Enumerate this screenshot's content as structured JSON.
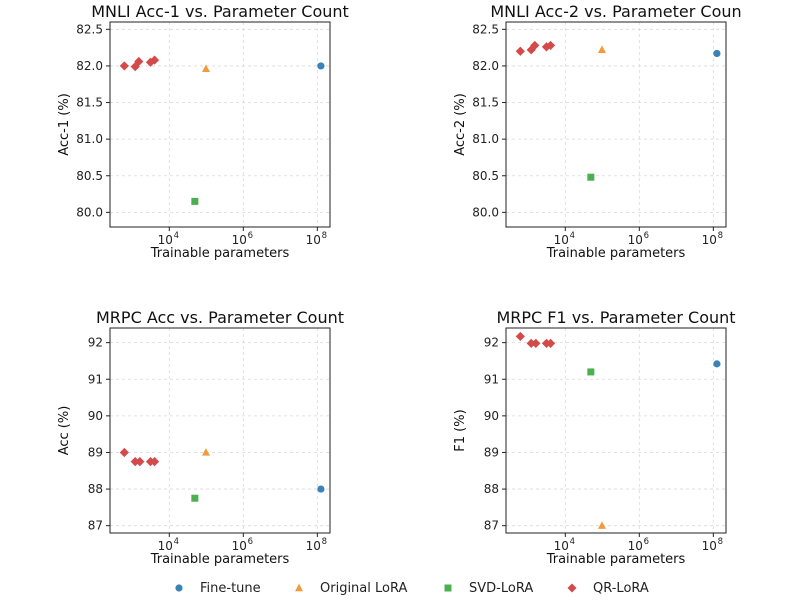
{
  "chart_data": [
    {
      "type": "scatter",
      "title": "MNLI Acc-1 vs. Parameter Count",
      "xlabel": "Trainable parameters",
      "ylabel": "Acc-1 (%)",
      "xscale": "log",
      "xticks": [
        10000,
        1000000,
        100000000
      ],
      "xtick_labels": [
        "10",
        "10",
        "10"
      ],
      "xtick_exponents": [
        "4",
        "6",
        "8"
      ],
      "ylim": [
        79.8,
        82.6
      ],
      "yticks": [
        80.0,
        80.5,
        81.0,
        81.5,
        82.0,
        82.5
      ],
      "ytick_labels": [
        "80.0",
        "80.5",
        "81.0",
        "81.5",
        "82.0",
        "82.5"
      ],
      "grid": true,
      "series": [
        {
          "name": "Fine-tune",
          "marker": "circle",
          "color": "#3a82b8",
          "points": [
            [
              125000000,
              82.0
            ]
          ]
        },
        {
          "name": "Original LoRA",
          "marker": "triangle",
          "color": "#f29b3d",
          "points": [
            [
              98000,
              81.96
            ]
          ]
        },
        {
          "name": "SVD-LoRA",
          "marker": "square",
          "color": "#4caf50",
          "points": [
            [
              49000,
              80.15
            ]
          ]
        },
        {
          "name": "QR-LoRA",
          "marker": "diamond",
          "color": "#d44a4a",
          "points": [
            [
              610,
              82.0
            ],
            [
              1200,
              81.99
            ],
            [
              1500,
              82.06
            ],
            [
              3100,
              82.05
            ],
            [
              4000,
              82.08
            ]
          ]
        }
      ]
    },
    {
      "type": "scatter",
      "title": "MNLI Acc-2 vs. Parameter Coun",
      "xlabel": "Trainable parameters",
      "ylabel": "Acc-2 (%)",
      "xscale": "log",
      "xticks": [
        10000,
        1000000,
        100000000
      ],
      "xtick_labels": [
        "10",
        "10",
        "10"
      ],
      "xtick_exponents": [
        "4",
        "6",
        "8"
      ],
      "ylim": [
        79.8,
        82.6
      ],
      "yticks": [
        80.0,
        80.5,
        81.0,
        81.5,
        82.0,
        82.5
      ],
      "ytick_labels": [
        "80.0",
        "80.5",
        "81.0",
        "81.5",
        "82.0",
        "82.5"
      ],
      "grid": true,
      "series": [
        {
          "name": "Fine-tune",
          "marker": "circle",
          "color": "#3a82b8",
          "points": [
            [
              125000000,
              82.17
            ]
          ]
        },
        {
          "name": "Original LoRA",
          "marker": "triangle",
          "color": "#f29b3d",
          "points": [
            [
              98000,
              82.22
            ]
          ]
        },
        {
          "name": "SVD-LoRA",
          "marker": "square",
          "color": "#4caf50",
          "points": [
            [
              49000,
              80.48
            ]
          ]
        },
        {
          "name": "QR-LoRA",
          "marker": "diamond",
          "color": "#d44a4a",
          "points": [
            [
              610,
              82.2
            ],
            [
              1200,
              82.22
            ],
            [
              1500,
              82.28
            ],
            [
              3100,
              82.26
            ],
            [
              4000,
              82.28
            ]
          ]
        }
      ]
    },
    {
      "type": "scatter",
      "title": "MRPC Acc vs. Parameter Count",
      "xlabel": "Trainable parameters",
      "ylabel": "Acc (%)",
      "xscale": "log",
      "xticks": [
        10000,
        1000000,
        100000000
      ],
      "xtick_labels": [
        "10",
        "10",
        "10"
      ],
      "xtick_exponents": [
        "4",
        "6",
        "8"
      ],
      "ylim": [
        86.8,
        92.4
      ],
      "yticks": [
        87,
        88,
        89,
        90,
        91,
        92
      ],
      "ytick_labels": [
        "87",
        "88",
        "89",
        "90",
        "91",
        "92"
      ],
      "grid": true,
      "series": [
        {
          "name": "Fine-tune",
          "marker": "circle",
          "color": "#3a82b8",
          "points": [
            [
              125000000,
              88.0
            ]
          ]
        },
        {
          "name": "Original LoRA",
          "marker": "triangle",
          "color": "#f29b3d",
          "points": [
            [
              98000,
              89.0
            ]
          ]
        },
        {
          "name": "SVD-LoRA",
          "marker": "square",
          "color": "#4caf50",
          "points": [
            [
              49000,
              87.75
            ]
          ]
        },
        {
          "name": "QR-LoRA",
          "marker": "diamond",
          "color": "#d44a4a",
          "points": [
            [
              610,
              89.0
            ],
            [
              1200,
              88.75
            ],
            [
              1600,
              88.75
            ],
            [
              3100,
              88.75
            ],
            [
              4000,
              88.75
            ]
          ]
        }
      ]
    },
    {
      "type": "scatter",
      "title": "MRPC F1 vs. Parameter Count",
      "xlabel": "Trainable parameters",
      "ylabel": "F1 (%)",
      "xscale": "log",
      "xticks": [
        10000,
        1000000,
        100000000
      ],
      "xtick_labels": [
        "10",
        "10",
        "10"
      ],
      "xtick_exponents": [
        "4",
        "6",
        "8"
      ],
      "ylim": [
        86.8,
        92.4
      ],
      "yticks": [
        87,
        88,
        89,
        90,
        91,
        92
      ],
      "ytick_labels": [
        "87",
        "88",
        "89",
        "90",
        "91",
        "92"
      ],
      "grid": true,
      "series": [
        {
          "name": "Fine-tune",
          "marker": "circle",
          "color": "#3a82b8",
          "points": [
            [
              125000000,
              91.42
            ]
          ]
        },
        {
          "name": "Original LoRA",
          "marker": "triangle",
          "color": "#f29b3d",
          "points": [
            [
              98000,
              87.0
            ]
          ]
        },
        {
          "name": "SVD-LoRA",
          "marker": "square",
          "color": "#4caf50",
          "points": [
            [
              49000,
              91.2
            ]
          ]
        },
        {
          "name": "QR-LoRA",
          "marker": "diamond",
          "color": "#d44a4a",
          "points": [
            [
              610,
              92.17
            ],
            [
              1200,
              91.98
            ],
            [
              1600,
              91.98
            ],
            [
              3100,
              91.98
            ],
            [
              4000,
              91.98
            ]
          ]
        }
      ]
    }
  ],
  "legend": {
    "placement": "bottom-center",
    "items": [
      {
        "label": "Fine-tune",
        "marker": "circle",
        "color": "#3a82b8"
      },
      {
        "label": "Original LoRA",
        "marker": "triangle",
        "color": "#f29b3d"
      },
      {
        "label": "SVD-LoRA",
        "marker": "square",
        "color": "#4caf50"
      },
      {
        "label": "QR-LoRA",
        "marker": "diamond",
        "color": "#d44a4a"
      }
    ]
  }
}
